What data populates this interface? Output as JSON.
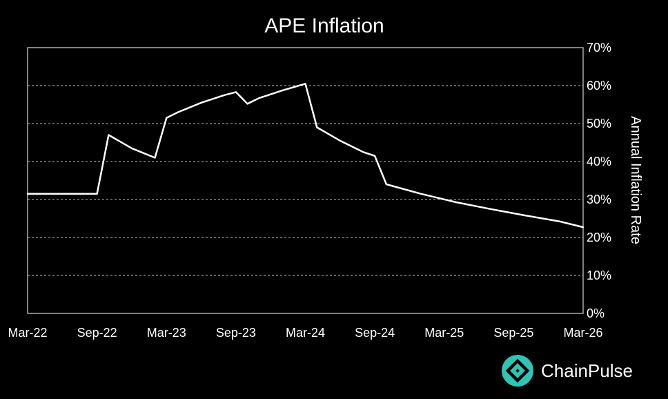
{
  "chart_data": {
    "type": "line",
    "title": "APE Inflation",
    "xlabel": "",
    "ylabel": "Annual Inflation Rate",
    "x_ticks": [
      "Mar-22",
      "Sep-22",
      "Mar-23",
      "Sep-23",
      "Mar-24",
      "Sep-24",
      "Mar-25",
      "Sep-25",
      "Mar-26"
    ],
    "y_ticks": [
      "0%",
      "10%",
      "20%",
      "30%",
      "40%",
      "50%",
      "60%",
      "70%"
    ],
    "ylim": [
      0,
      70
    ],
    "xlim": [
      "Mar-22",
      "Mar-26"
    ],
    "y_axis_side": "right",
    "grid": "horizontal dashed",
    "legend": "none",
    "series": [
      {
        "x": [
          "Mar-22",
          "Sep-22",
          "Oct-22",
          "Dec-22",
          "Feb-23",
          "Mar-23",
          "Apr-23",
          "Jun-23",
          "Aug-23",
          "Sep-23",
          "Oct-23",
          "Nov-23",
          "Jan-24",
          "Mar-24",
          "Apr-24",
          "Jun-24",
          "Aug-24",
          "Sep-24",
          "Oct-24",
          "Jan-25",
          "Apr-25",
          "Jul-25",
          "Oct-25",
          "Jan-26",
          "Mar-26"
        ],
        "values": [
          31.5,
          31.5,
          47.0,
          43.5,
          41.0,
          51.5,
          53.0,
          55.5,
          57.5,
          58.3,
          55.2,
          56.7,
          58.7,
          60.5,
          49.0,
          45.5,
          42.5,
          41.5,
          34.0,
          31.5,
          29.3,
          27.5,
          25.8,
          24.2,
          22.7
        ]
      }
    ],
    "colors": {
      "background": "#000000",
      "line": "#ffffff",
      "grid": "#bfbfbf",
      "frame": "#ffffff"
    }
  },
  "brand": {
    "name": "ChainPulse",
    "icon": "chainpulse-logo-icon",
    "accent": "#2ec4b6"
  }
}
